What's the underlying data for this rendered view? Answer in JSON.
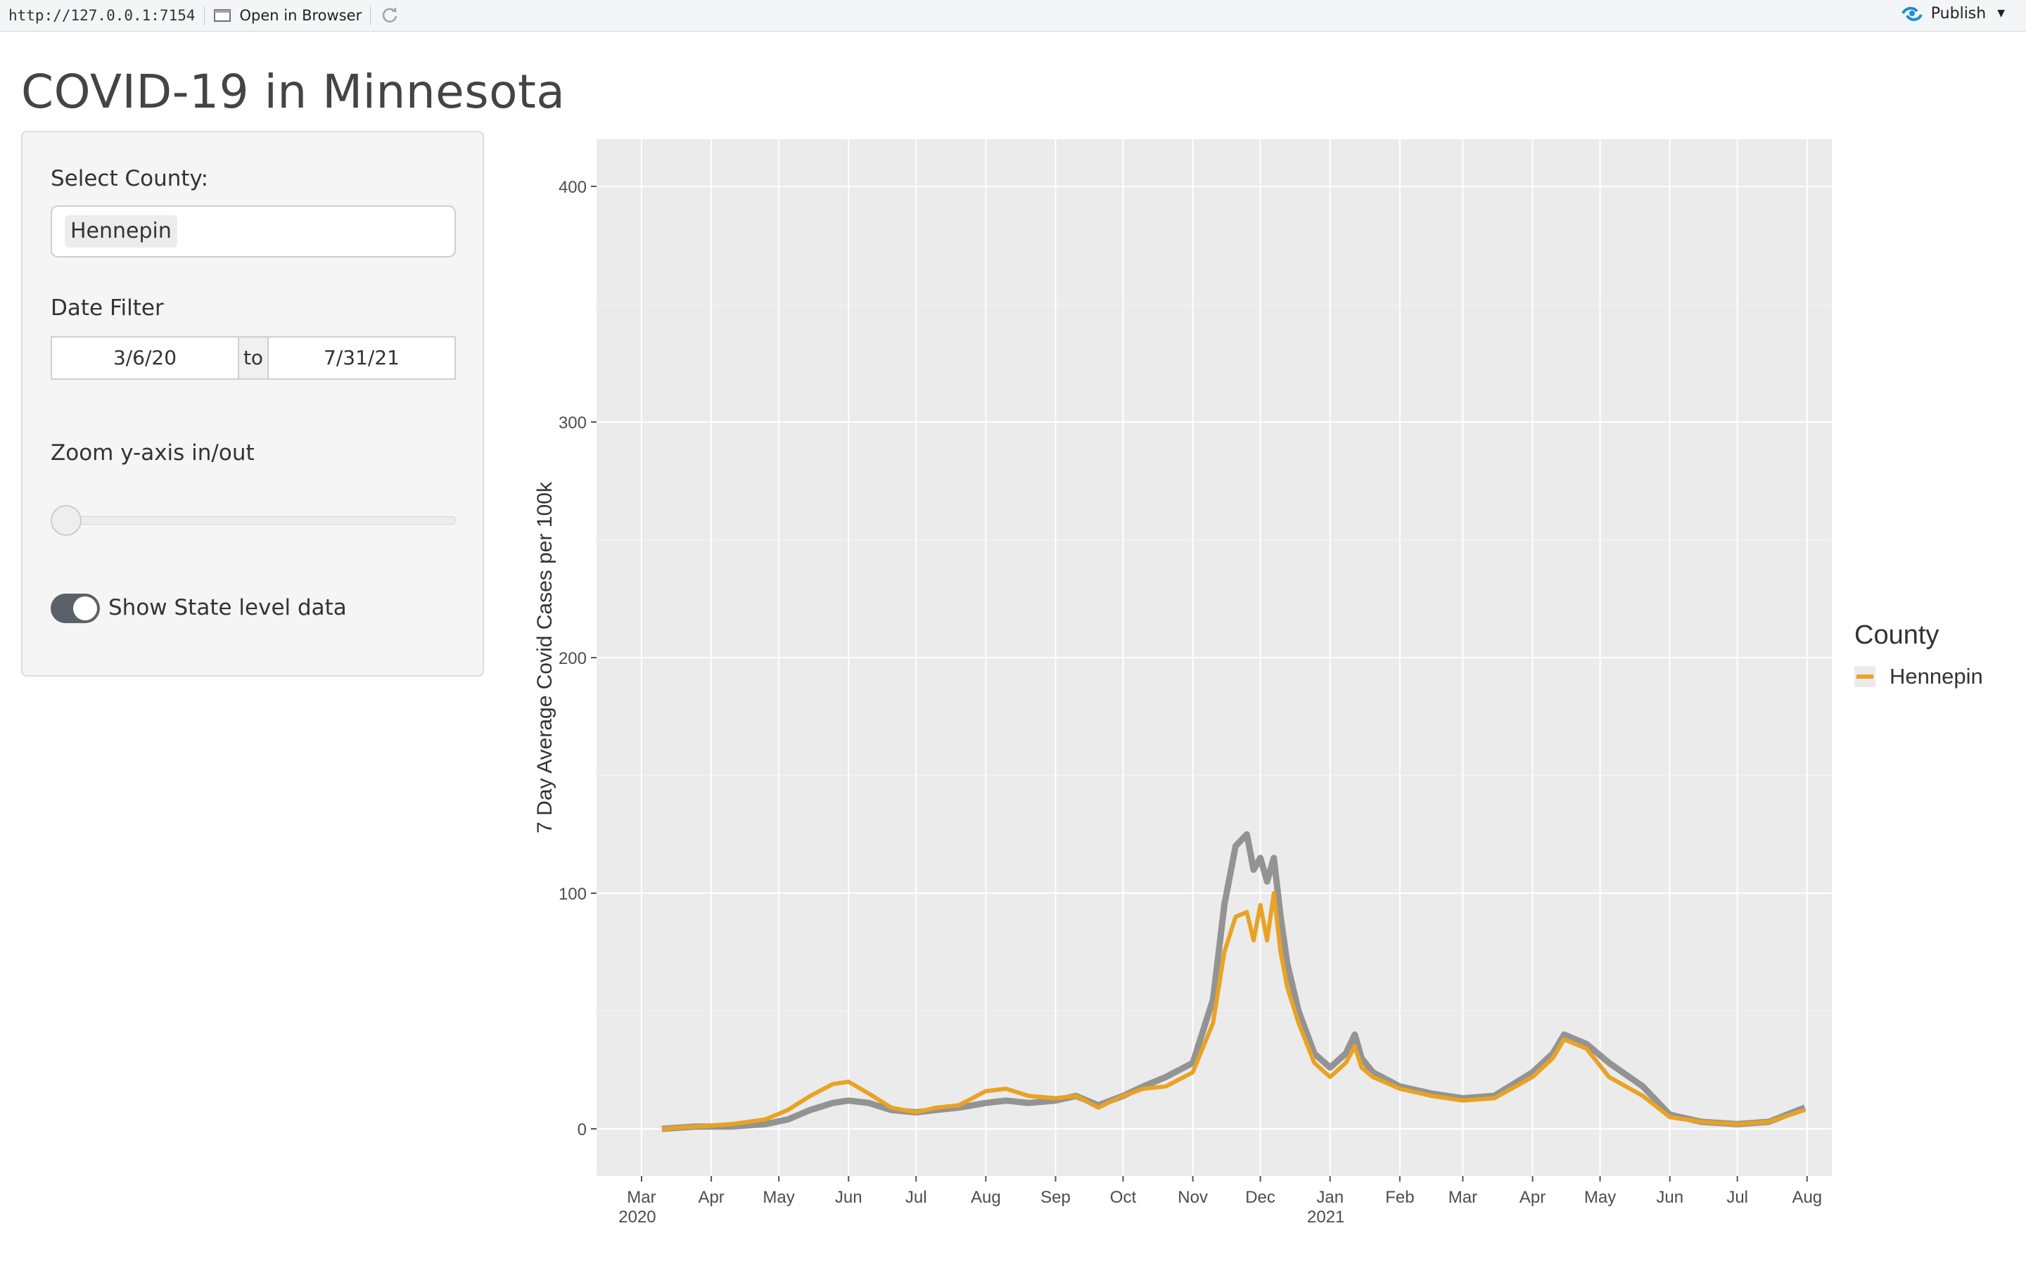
{
  "topbar": {
    "url": "http://127.0.0.1:7154",
    "open_label": "Open in Browser",
    "publish_label": "Publish",
    "publish_color": "#1a8fd6"
  },
  "page": {
    "title": "COVID-19 in Minnesota"
  },
  "sidebar": {
    "county_label": "Select County:",
    "county_value": "Hennepin",
    "date_label": "Date Filter",
    "date_start": "3/6/20",
    "date_to": "to",
    "date_end": "7/31/21",
    "zoom_label": "Zoom y-axis in/out",
    "zoom_value": 0,
    "toggle_label": "Show State level data",
    "toggle_on": true
  },
  "chart_data": {
    "type": "line",
    "ylabel": "7 Day Average Covid Cases per 100k",
    "xlabel": "",
    "ylim": [
      0,
      420
    ],
    "yticks": [
      0,
      100,
      200,
      300,
      400
    ],
    "grid": true,
    "legend": {
      "title": "County",
      "entries": [
        "Hennepin"
      ],
      "placement": "right"
    },
    "x_ticks": [
      {
        "label": "Mar",
        "sub": "2020",
        "date": "2020-03-01"
      },
      {
        "label": "Apr",
        "sub": "",
        "date": "2020-04-01"
      },
      {
        "label": "May",
        "sub": "",
        "date": "2020-05-01"
      },
      {
        "label": "Jun",
        "sub": "",
        "date": "2020-06-01"
      },
      {
        "label": "Jul",
        "sub": "",
        "date": "2020-07-01"
      },
      {
        "label": "Aug",
        "sub": "",
        "date": "2020-08-01"
      },
      {
        "label": "Sep",
        "sub": "",
        "date": "2020-09-01"
      },
      {
        "label": "Oct",
        "sub": "",
        "date": "2020-10-01"
      },
      {
        "label": "Nov",
        "sub": "",
        "date": "2020-11-01"
      },
      {
        "label": "Dec",
        "sub": "",
        "date": "2020-12-01"
      },
      {
        "label": "Jan",
        "sub": "2021",
        "date": "2021-01-01"
      },
      {
        "label": "Feb",
        "sub": "",
        "date": "2021-02-01"
      },
      {
        "label": "Mar",
        "sub": "",
        "date": "2021-03-01"
      },
      {
        "label": "Apr",
        "sub": "",
        "date": "2021-04-01"
      },
      {
        "label": "May",
        "sub": "",
        "date": "2021-05-01"
      },
      {
        "label": "Jun",
        "sub": "",
        "date": "2021-06-01"
      },
      {
        "label": "Jul",
        "sub": "",
        "date": "2021-07-01"
      },
      {
        "label": "Aug",
        "sub": "",
        "date": "2021-08-01"
      }
    ],
    "series": [
      {
        "name": "Hennepin",
        "color": "#e8a325",
        "x": [
          "2020-03-10",
          "2020-03-25",
          "2020-04-10",
          "2020-04-25",
          "2020-05-05",
          "2020-05-15",
          "2020-05-25",
          "2020-06-01",
          "2020-06-10",
          "2020-06-20",
          "2020-07-01",
          "2020-07-10",
          "2020-07-20",
          "2020-08-01",
          "2020-08-10",
          "2020-08-20",
          "2020-09-01",
          "2020-09-10",
          "2020-09-20",
          "2020-10-01",
          "2020-10-10",
          "2020-10-20",
          "2020-11-01",
          "2020-11-10",
          "2020-11-15",
          "2020-11-20",
          "2020-11-25",
          "2020-11-28",
          "2020-12-01",
          "2020-12-04",
          "2020-12-07",
          "2020-12-10",
          "2020-12-13",
          "2020-12-18",
          "2020-12-25",
          "2021-01-01",
          "2021-01-08",
          "2021-01-12",
          "2021-01-15",
          "2021-01-20",
          "2021-02-01",
          "2021-02-15",
          "2021-03-01",
          "2021-03-15",
          "2021-04-01",
          "2021-04-10",
          "2021-04-15",
          "2021-04-25",
          "2021-05-05",
          "2021-05-20",
          "2021-06-01",
          "2021-06-15",
          "2021-07-01",
          "2021-07-15",
          "2021-07-31"
        ],
        "y": [
          0,
          1,
          2,
          4,
          8,
          14,
          19,
          20,
          15,
          9,
          7,
          9,
          10,
          16,
          17,
          14,
          13,
          14,
          9,
          14,
          17,
          18,
          24,
          45,
          75,
          90,
          92,
          80,
          95,
          80,
          100,
          75,
          60,
          45,
          28,
          22,
          28,
          35,
          26,
          22,
          17,
          14,
          12,
          13,
          22,
          30,
          38,
          34,
          22,
          14,
          5,
          3,
          2,
          3,
          8
        ]
      },
      {
        "name": "",
        "color": "#8a8a8a",
        "x": [
          "2020-03-10",
          "2020-03-25",
          "2020-04-10",
          "2020-04-25",
          "2020-05-05",
          "2020-05-15",
          "2020-05-25",
          "2020-06-01",
          "2020-06-10",
          "2020-06-20",
          "2020-07-01",
          "2020-07-10",
          "2020-07-20",
          "2020-08-01",
          "2020-08-10",
          "2020-08-20",
          "2020-09-01",
          "2020-09-10",
          "2020-09-20",
          "2020-10-01",
          "2020-10-10",
          "2020-10-20",
          "2020-11-01",
          "2020-11-10",
          "2020-11-15",
          "2020-11-20",
          "2020-11-25",
          "2020-11-28",
          "2020-12-01",
          "2020-12-04",
          "2020-12-07",
          "2020-12-10",
          "2020-12-13",
          "2020-12-18",
          "2020-12-25",
          "2021-01-01",
          "2021-01-08",
          "2021-01-12",
          "2021-01-15",
          "2021-01-20",
          "2021-02-01",
          "2021-02-15",
          "2021-03-01",
          "2021-03-15",
          "2021-04-01",
          "2021-04-10",
          "2021-04-15",
          "2021-04-25",
          "2021-05-05",
          "2021-05-20",
          "2021-06-01",
          "2021-06-15",
          "2021-07-01",
          "2021-07-15",
          "2021-07-31"
        ],
        "y": [
          0,
          1,
          1,
          2,
          4,
          8,
          11,
          12,
          11,
          8,
          7,
          8,
          9,
          11,
          12,
          11,
          12,
          14,
          10,
          14,
          18,
          22,
          28,
          55,
          95,
          120,
          125,
          110,
          115,
          105,
          115,
          90,
          70,
          50,
          32,
          26,
          32,
          40,
          30,
          24,
          18,
          15,
          13,
          14,
          24,
          32,
          40,
          36,
          28,
          18,
          6,
          3,
          2,
          3,
          9
        ]
      }
    ]
  }
}
